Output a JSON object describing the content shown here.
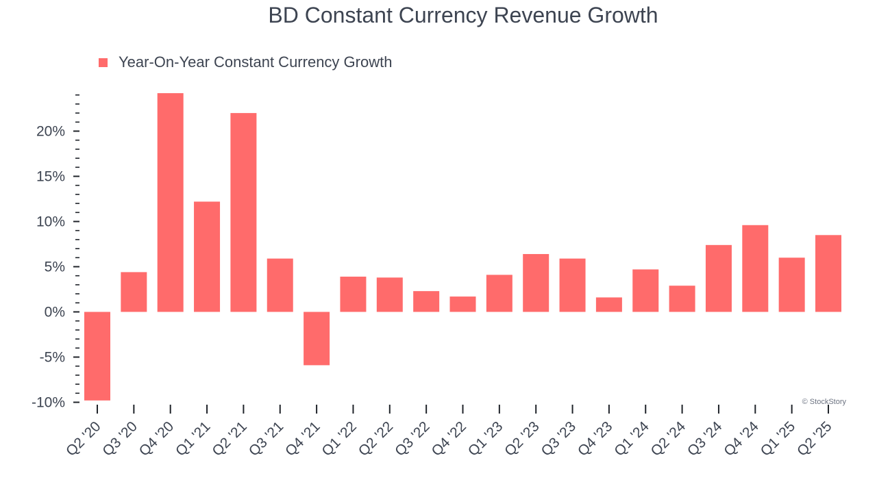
{
  "chart_data": {
    "type": "bar",
    "title": "BD Constant Currency Revenue Growth",
    "xlabel": "",
    "ylabel": "",
    "categories": [
      "Q2 '20",
      "Q3 '20",
      "Q4 '20",
      "Q1 '21",
      "Q2 '21",
      "Q3 '21",
      "Q4 '21",
      "Q1 '22",
      "Q2 '22",
      "Q3 '22",
      "Q4 '22",
      "Q1 '23",
      "Q2 '23",
      "Q3 '23",
      "Q4 '23",
      "Q1 '24",
      "Q2 '24",
      "Q3 '24",
      "Q4 '24",
      "Q1 '25",
      "Q2 '25"
    ],
    "series": [
      {
        "name": "Year-On-Year Constant Currency Growth",
        "color": "#ff6b6b",
        "values": [
          -9.8,
          4.4,
          24.2,
          12.2,
          22.0,
          5.9,
          -5.9,
          3.9,
          3.8,
          2.3,
          1.7,
          4.1,
          6.4,
          5.9,
          1.6,
          4.7,
          2.9,
          7.4,
          9.6,
          6.0,
          8.5
        ]
      }
    ],
    "ylim": [
      -10,
      24.5
    ],
    "yticks": [
      -10,
      -5,
      0,
      5,
      10,
      15,
      20
    ],
    "ytick_labels": [
      "-10%",
      "-5%",
      "0%",
      "5%",
      "10%",
      "15%",
      "20%"
    ],
    "legend_position": "top-left",
    "grid": false
  },
  "credit": "© StockStory"
}
